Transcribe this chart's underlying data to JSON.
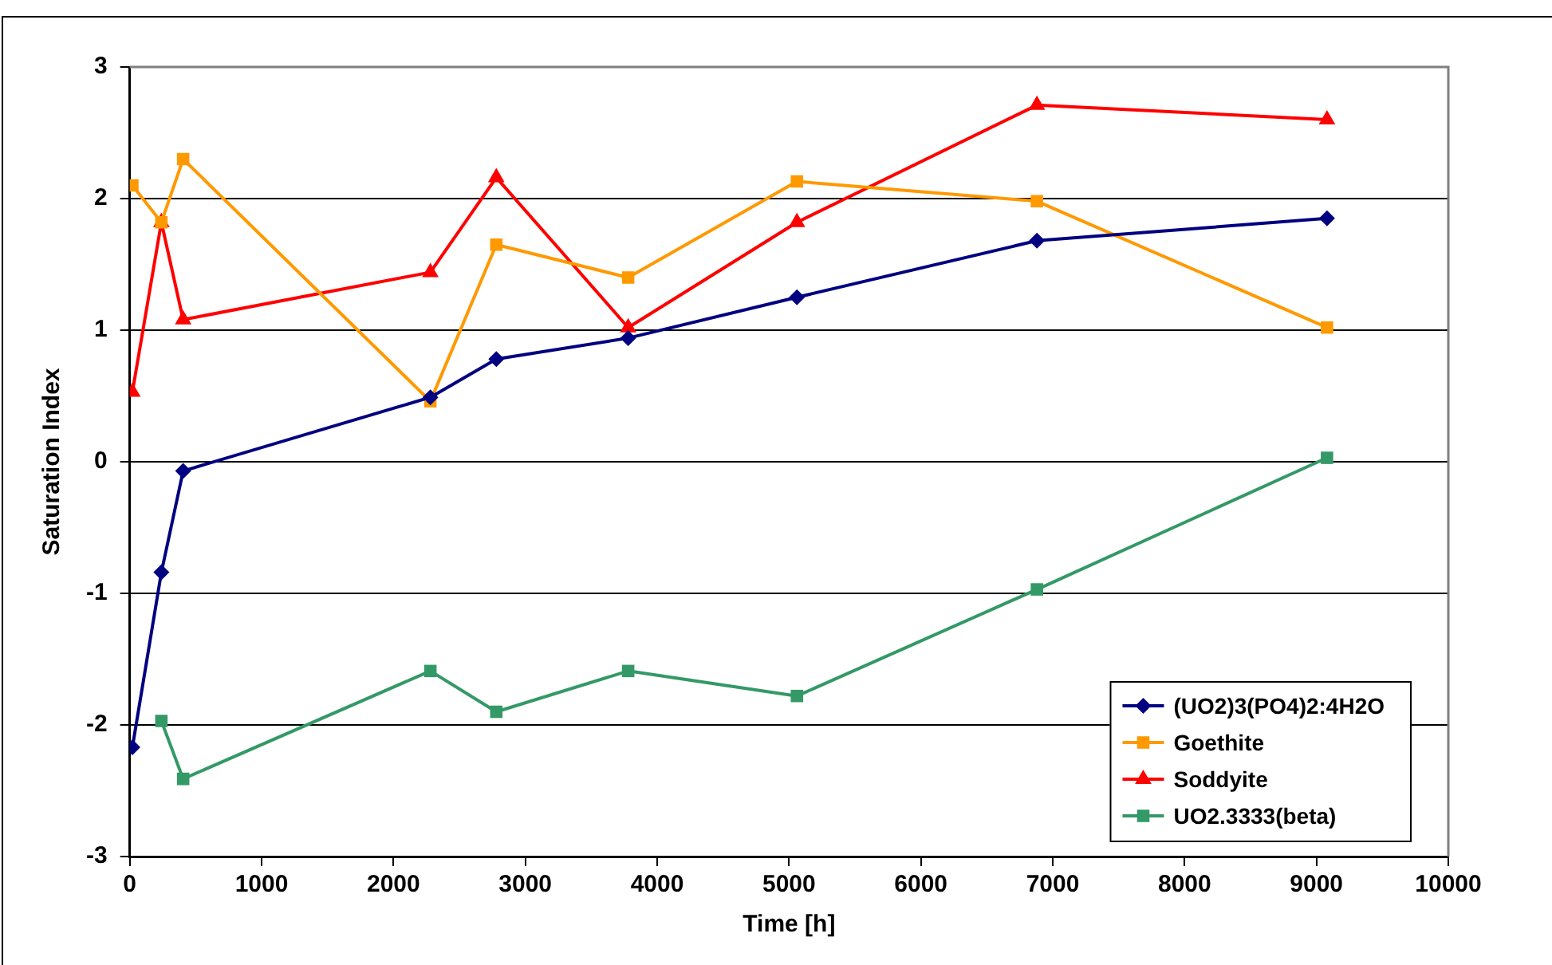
{
  "chart_data": {
    "type": "line",
    "xlabel": "Time [h]",
    "ylabel": "Saturation Index",
    "x": [
      20,
      240,
      405,
      2280,
      2780,
      3780,
      5060,
      6880,
      9080
    ],
    "series": [
      {
        "name": "(UO2)3(PO4)2:4H2O",
        "color": "#000080",
        "marker": "diamond",
        "values": [
          -2.17,
          -0.84,
          -0.07,
          0.49,
          0.78,
          0.94,
          1.25,
          1.68,
          1.85
        ]
      },
      {
        "name": "Goethite",
        "color": "#ff9900",
        "marker": "square",
        "values": [
          2.1,
          1.82,
          2.3,
          0.46,
          1.65,
          1.4,
          2.13,
          1.98,
          1.02
        ]
      },
      {
        "name": "Soddyite",
        "color": "#ff0000",
        "marker": "triangle",
        "values": [
          0.53,
          1.82,
          1.08,
          1.44,
          2.16,
          1.02,
          1.82,
          2.71,
          2.6
        ]
      },
      {
        "name": "UO2.3333(beta)",
        "color": "#339966",
        "marker": "square",
        "values": [
          null,
          -1.97,
          -2.41,
          -1.59,
          -1.9,
          -1.59,
          -1.78,
          -0.97,
          0.03
        ]
      }
    ],
    "xlim": [
      0,
      10000
    ],
    "xticks": [
      0,
      1000,
      2000,
      3000,
      4000,
      5000,
      6000,
      7000,
      8000,
      9000,
      10000
    ],
    "ylim": [
      -3,
      3
    ],
    "yticks": [
      -3,
      -2,
      -1,
      0,
      1,
      2,
      3
    ],
    "grid": "y",
    "legend": "bottom right"
  }
}
